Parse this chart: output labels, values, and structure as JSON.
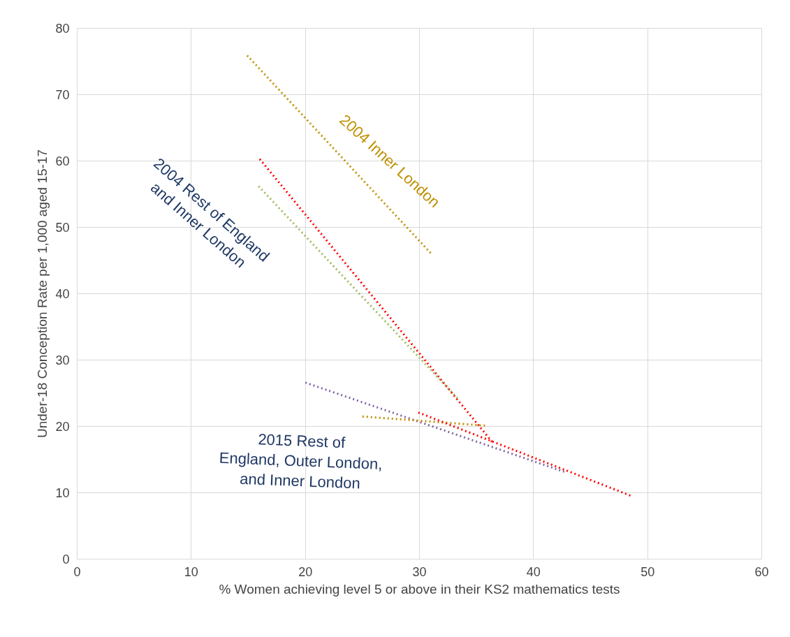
{
  "chart_data": {
    "type": "line",
    "xlabel": "% Women achieving level 5 or above in their KS2 mathematics tests",
    "ylabel": "Under-18 Conception Rate per 1,000 aged 15-17",
    "xlim": [
      0,
      60
    ],
    "ylim": [
      0,
      80
    ],
    "xticks": [
      0,
      10,
      20,
      30,
      40,
      50,
      60
    ],
    "yticks": [
      0,
      10,
      20,
      30,
      40,
      50,
      60,
      70,
      80
    ],
    "grid": true,
    "line_style": "dotted",
    "marker": "none",
    "series": [
      {
        "color": "#bf9000",
        "x": [
          14.9,
          31.0
        ],
        "values": [
          75.9,
          46.1
        ]
      },
      {
        "color": "#ff0000",
        "x": [
          16.0,
          36.5
        ],
        "values": [
          60.3,
          17.4
        ]
      },
      {
        "color": "#9bbb59",
        "x": [
          15.9,
          33.3
        ],
        "values": [
          56.2,
          24.3
        ]
      },
      {
        "color": "#8064a2",
        "x": [
          20.0,
          42.8
        ],
        "values": [
          26.6,
          13.1
        ]
      },
      {
        "color": "#bf9000",
        "x": [
          25.0,
          35.9
        ],
        "values": [
          21.5,
          20.1
        ]
      },
      {
        "color": "#ff0000",
        "x": [
          29.9,
          48.6
        ],
        "values": [
          22.1,
          9.5
        ]
      }
    ],
    "annotations": [
      "2004 Inner London",
      "2004 Rest of England and Inner London",
      "2015 Rest of England, Outer London, and Inner London"
    ]
  }
}
